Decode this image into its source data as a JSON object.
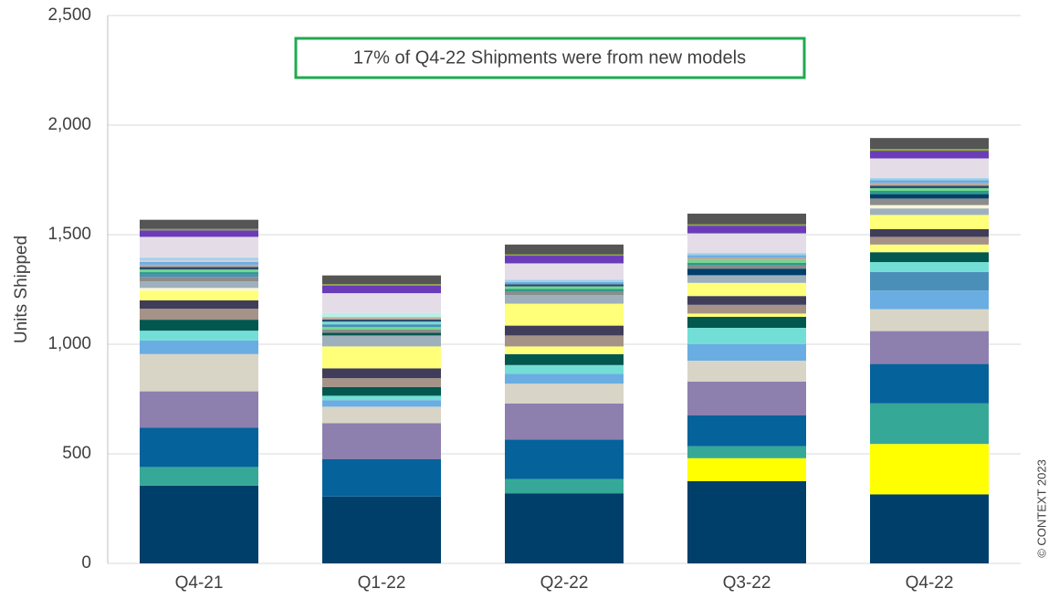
{
  "chart_data": {
    "type": "bar",
    "stacked": true,
    "ylabel": "Units Shipped",
    "ylim": [
      0,
      2500
    ],
    "yticks": [
      0,
      500,
      1000,
      1500,
      2000,
      2500
    ],
    "ytick_labels": [
      "0",
      "500",
      "1,000",
      "1,500",
      "2,000",
      "2,500"
    ],
    "categories": [
      "Q4-21",
      "Q1-22",
      "Q2-22",
      "Q3-22",
      "Q4-22"
    ],
    "grid": true,
    "annotation": "17% of Q4-22 Shipments were from new models",
    "annotation_border_color": "#1faa4f",
    "copyright": "© CONTEXT 2023",
    "stacks": [
      [
        {
          "value": 355,
          "color": "#003f69"
        },
        {
          "value": 85,
          "color": "#36a898"
        },
        {
          "value": 180,
          "color": "#05629b"
        },
        {
          "value": 165,
          "color": "#8d80ae"
        },
        {
          "value": 170,
          "color": "#d8d5c6"
        },
        {
          "value": 62,
          "color": "#6aade3"
        },
        {
          "value": 45,
          "color": "#73ded5"
        },
        {
          "value": 50,
          "color": "#02574f"
        },
        {
          "value": 50,
          "color": "#a59387"
        },
        {
          "value": 38,
          "color": "#403d5a"
        },
        {
          "value": 45,
          "color": "#ffff7a"
        },
        {
          "value": 12,
          "color": "#f8f7da"
        },
        {
          "value": 30,
          "color": "#9fb0bd"
        },
        {
          "value": 20,
          "color": "#8c8c8c"
        },
        {
          "value": 12,
          "color": "#4a8fb7"
        },
        {
          "value": 10,
          "color": "#2f9a8a"
        },
        {
          "value": 12,
          "color": "#6fd98f"
        },
        {
          "value": 12,
          "color": "#2d4a6e"
        },
        {
          "value": 10,
          "color": "#bca99c"
        },
        {
          "value": 12,
          "color": "#6aade3"
        },
        {
          "value": 10,
          "color": "#cfcfdf"
        },
        {
          "value": 10,
          "color": "#9ad0e8"
        },
        {
          "value": 95,
          "color": "#e4dde8"
        },
        {
          "value": 30,
          "color": "#6a3cb8"
        },
        {
          "value": 6,
          "color": "#8aac2a"
        },
        {
          "value": 42,
          "color": "#555555"
        }
      ],
      [
        {
          "value": 305,
          "color": "#003f69"
        },
        {
          "value": 170,
          "color": "#05629b"
        },
        {
          "value": 165,
          "color": "#8d80ae"
        },
        {
          "value": 75,
          "color": "#d8d5c6"
        },
        {
          "value": 30,
          "color": "#6aade3"
        },
        {
          "value": 20,
          "color": "#73ded5"
        },
        {
          "value": 40,
          "color": "#02574f"
        },
        {
          "value": 40,
          "color": "#a59387"
        },
        {
          "value": 45,
          "color": "#403d5a"
        },
        {
          "value": 100,
          "color": "#ffff7a"
        },
        {
          "value": 50,
          "color": "#9fb0bd"
        },
        {
          "value": 12,
          "color": "#02574f"
        },
        {
          "value": 15,
          "color": "#8c8c8c"
        },
        {
          "value": 12,
          "color": "#6fd98f"
        },
        {
          "value": 12,
          "color": "#4a8fb7"
        },
        {
          "value": 12,
          "color": "#73ded5"
        },
        {
          "value": 10,
          "color": "#2d4a6e"
        },
        {
          "value": 10,
          "color": "#bca99c"
        },
        {
          "value": 20,
          "color": "#b8f0e8"
        },
        {
          "value": 90,
          "color": "#e4dde8"
        },
        {
          "value": 35,
          "color": "#6a3cb8"
        },
        {
          "value": 6,
          "color": "#8aac2a"
        },
        {
          "value": 40,
          "color": "#555555"
        }
      ],
      [
        {
          "value": 320,
          "color": "#003f69"
        },
        {
          "value": 65,
          "color": "#36a898"
        },
        {
          "value": 180,
          "color": "#05629b"
        },
        {
          "value": 165,
          "color": "#8d80ae"
        },
        {
          "value": 90,
          "color": "#d8d5c6"
        },
        {
          "value": 45,
          "color": "#6aade3"
        },
        {
          "value": 40,
          "color": "#73ded5"
        },
        {
          "value": 50,
          "color": "#02574f"
        },
        {
          "value": 35,
          "color": "#ffff7a"
        },
        {
          "value": 50,
          "color": "#a59387"
        },
        {
          "value": 45,
          "color": "#403d5a"
        },
        {
          "value": 100,
          "color": "#ffff7a"
        },
        {
          "value": 40,
          "color": "#9fb0bd"
        },
        {
          "value": 15,
          "color": "#8c8c8c"
        },
        {
          "value": 12,
          "color": "#2f9a8a"
        },
        {
          "value": 12,
          "color": "#6fd98f"
        },
        {
          "value": 10,
          "color": "#2d4a6e"
        },
        {
          "value": 10,
          "color": "#6aade3"
        },
        {
          "value": 10,
          "color": "#9ad0e8"
        },
        {
          "value": 75,
          "color": "#e4dde8"
        },
        {
          "value": 35,
          "color": "#6a3cb8"
        },
        {
          "value": 6,
          "color": "#8aac2a"
        },
        {
          "value": 45,
          "color": "#555555"
        }
      ],
      [
        {
          "value": 375,
          "color": "#003f69"
        },
        {
          "value": 105,
          "color": "#ffff00"
        },
        {
          "value": 55,
          "color": "#36a898"
        },
        {
          "value": 140,
          "color": "#05629b"
        },
        {
          "value": 155,
          "color": "#8d80ae"
        },
        {
          "value": 95,
          "color": "#d8d5c6"
        },
        {
          "value": 75,
          "color": "#6aade3"
        },
        {
          "value": 75,
          "color": "#73ded5"
        },
        {
          "value": 50,
          "color": "#02574f"
        },
        {
          "value": 15,
          "color": "#ffff7a"
        },
        {
          "value": 40,
          "color": "#a59387"
        },
        {
          "value": 40,
          "color": "#403d5a"
        },
        {
          "value": 60,
          "color": "#ffff7a"
        },
        {
          "value": 35,
          "color": "#9fb0bd"
        },
        {
          "value": 30,
          "color": "#003f69"
        },
        {
          "value": 15,
          "color": "#8c8c8c"
        },
        {
          "value": 12,
          "color": "#2f9a8a"
        },
        {
          "value": 12,
          "color": "#6fd98f"
        },
        {
          "value": 12,
          "color": "#bca99c"
        },
        {
          "value": 10,
          "color": "#6aade3"
        },
        {
          "value": 10,
          "color": "#9ad0e8"
        },
        {
          "value": 90,
          "color": "#e4dde8"
        },
        {
          "value": 35,
          "color": "#6a3cb8"
        },
        {
          "value": 6,
          "color": "#8aac2a"
        },
        {
          "value": 49,
          "color": "#555555"
        }
      ],
      [
        {
          "value": 315,
          "color": "#003f69"
        },
        {
          "value": 230,
          "color": "#ffff00"
        },
        {
          "value": 185,
          "color": "#36a898"
        },
        {
          "value": 180,
          "color": "#05629b"
        },
        {
          "value": 150,
          "color": "#8d80ae"
        },
        {
          "value": 100,
          "color": "#d8d5c6"
        },
        {
          "value": 85,
          "color": "#6aade3"
        },
        {
          "value": 85,
          "color": "#4a8fb7"
        },
        {
          "value": 45,
          "color": "#73ded5"
        },
        {
          "value": 45,
          "color": "#02574f"
        },
        {
          "value": 35,
          "color": "#ffff7a"
        },
        {
          "value": 35,
          "color": "#a59387"
        },
        {
          "value": 35,
          "color": "#403d5a"
        },
        {
          "value": 65,
          "color": "#ffff7a"
        },
        {
          "value": 30,
          "color": "#9fb0bd"
        },
        {
          "value": 15,
          "color": "#f8f7da"
        },
        {
          "value": 30,
          "color": "#8c8c8c"
        },
        {
          "value": 20,
          "color": "#003f69"
        },
        {
          "value": 15,
          "color": "#2f9a8a"
        },
        {
          "value": 12,
          "color": "#6fd98f"
        },
        {
          "value": 12,
          "color": "#2d4a6e"
        },
        {
          "value": 12,
          "color": "#bca99c"
        },
        {
          "value": 12,
          "color": "#6aade3"
        },
        {
          "value": 10,
          "color": "#9ad0e8"
        },
        {
          "value": 90,
          "color": "#e4dde8"
        },
        {
          "value": 35,
          "color": "#6a3cb8"
        },
        {
          "value": 8,
          "color": "#8aac2a"
        },
        {
          "value": 50,
          "color": "#555555"
        }
      ]
    ]
  }
}
